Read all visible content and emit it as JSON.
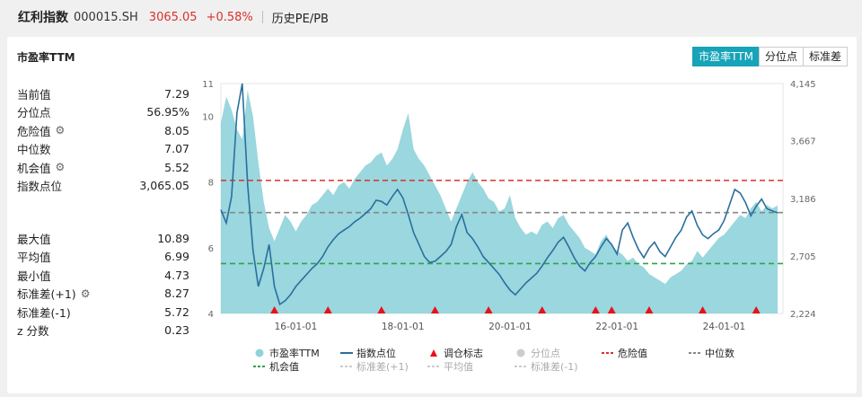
{
  "header": {
    "name": "红利指数",
    "code": "000015.SH",
    "price": "3065.05",
    "change_pct": "+0.58%",
    "tab": "历史PE/PB"
  },
  "card": {
    "title": "市盈率TTM",
    "toggles": [
      "市盈率TTM",
      "分位点",
      "标准差"
    ],
    "active_toggle": "市盈率TTM"
  },
  "stats_top": [
    {
      "label": "当前值",
      "value": "7.29",
      "gear": false
    },
    {
      "label": "分位点",
      "value": "56.95%",
      "gear": false
    },
    {
      "label": "危险值",
      "value": "8.05",
      "gear": true
    },
    {
      "label": "中位数",
      "value": "7.07",
      "gear": false
    },
    {
      "label": "机会值",
      "value": "5.52",
      "gear": true
    },
    {
      "label": "指数点位",
      "value": "3,065.05",
      "gear": false
    }
  ],
  "stats_bottom": [
    {
      "label": "最大值",
      "value": "10.89",
      "gear": false
    },
    {
      "label": "平均值",
      "value": "6.99",
      "gear": false
    },
    {
      "label": "最小值",
      "value": "4.73",
      "gear": false
    },
    {
      "label": "标准差(+1)",
      "value": "8.27",
      "gear": true
    },
    {
      "label": "标准差(-1)",
      "value": "5.72",
      "gear": false
    },
    {
      "label": "z 分数",
      "value": "0.23",
      "gear": false
    }
  ],
  "legend": {
    "row1": [
      "市盈率TTM",
      "指数点位",
      "调仓标志",
      "分位点",
      "危险值",
      "中位数"
    ],
    "row2": [
      "机会值",
      "标准差(+1)",
      "平均值",
      "标准差(-1)"
    ]
  },
  "colors": {
    "pe_fill": "#8fd3da",
    "index_line": "#2a6f9e",
    "danger": "#d9312a",
    "median": "#888888",
    "opportunity": "#2ea44f",
    "marker": "#e8101a",
    "accent": "#17a3b8"
  },
  "chart_data": {
    "type": "area",
    "x_ticks": [
      "16-01-01",
      "18-01-01",
      "20-01-01",
      "22-01-01",
      "24-01-01"
    ],
    "y_left_ticks": [
      "4",
      "6",
      "8",
      "10",
      "11"
    ],
    "y_right_ticks": [
      "2,224",
      "2,705",
      "3,186",
      "3,667",
      "4,145"
    ],
    "y_left_range": [
      4,
      11
    ],
    "y_right_range": [
      2224,
      4145
    ],
    "x_range": [
      2014.6,
      2025.1
    ],
    "reference_lines": {
      "danger": 8.05,
      "median": 7.07,
      "opportunity": 5.52
    },
    "pe_series": [
      [
        2014.6,
        9.8
      ],
      [
        2014.7,
        10.6
      ],
      [
        2014.8,
        10.2
      ],
      [
        2014.9,
        9.6
      ],
      [
        2015.0,
        9.3
      ],
      [
        2015.1,
        10.8
      ],
      [
        2015.2,
        10.0
      ],
      [
        2015.3,
        8.6
      ],
      [
        2015.4,
        7.4
      ],
      [
        2015.5,
        6.6
      ],
      [
        2015.6,
        6.2
      ],
      [
        2015.7,
        6.6
      ],
      [
        2015.8,
        7.0
      ],
      [
        2015.9,
        6.8
      ],
      [
        2016.0,
        6.5
      ],
      [
        2016.1,
        6.8
      ],
      [
        2016.2,
        7.0
      ],
      [
        2016.3,
        7.3
      ],
      [
        2016.4,
        7.4
      ],
      [
        2016.5,
        7.6
      ],
      [
        2016.6,
        7.8
      ],
      [
        2016.7,
        7.6
      ],
      [
        2016.8,
        7.9
      ],
      [
        2016.9,
        8.0
      ],
      [
        2017.0,
        7.8
      ],
      [
        2017.1,
        8.1
      ],
      [
        2017.2,
        8.3
      ],
      [
        2017.3,
        8.5
      ],
      [
        2017.4,
        8.6
      ],
      [
        2017.5,
        8.8
      ],
      [
        2017.6,
        8.9
      ],
      [
        2017.7,
        8.5
      ],
      [
        2017.8,
        8.7
      ],
      [
        2017.9,
        9.0
      ],
      [
        2018.0,
        9.6
      ],
      [
        2018.1,
        10.1
      ],
      [
        2018.2,
        9.0
      ],
      [
        2018.3,
        8.7
      ],
      [
        2018.4,
        8.5
      ],
      [
        2018.5,
        8.2
      ],
      [
        2018.6,
        7.9
      ],
      [
        2018.7,
        7.6
      ],
      [
        2018.8,
        7.2
      ],
      [
        2018.9,
        6.8
      ],
      [
        2019.0,
        7.2
      ],
      [
        2019.1,
        7.6
      ],
      [
        2019.2,
        8.0
      ],
      [
        2019.3,
        8.3
      ],
      [
        2019.4,
        8.0
      ],
      [
        2019.5,
        7.8
      ],
      [
        2019.6,
        7.5
      ],
      [
        2019.7,
        7.4
      ],
      [
        2019.8,
        7.1
      ],
      [
        2019.9,
        7.2
      ],
      [
        2020.0,
        7.6
      ],
      [
        2020.1,
        6.9
      ],
      [
        2020.2,
        6.6
      ],
      [
        2020.3,
        6.4
      ],
      [
        2020.4,
        6.5
      ],
      [
        2020.5,
        6.4
      ],
      [
        2020.6,
        6.7
      ],
      [
        2020.7,
        6.8
      ],
      [
        2020.8,
        6.6
      ],
      [
        2020.9,
        6.9
      ],
      [
        2021.0,
        7.0
      ],
      [
        2021.1,
        6.7
      ],
      [
        2021.2,
        6.5
      ],
      [
        2021.3,
        6.3
      ],
      [
        2021.4,
        6.0
      ],
      [
        2021.5,
        5.9
      ],
      [
        2021.6,
        5.8
      ],
      [
        2021.7,
        6.2
      ],
      [
        2021.8,
        6.4
      ],
      [
        2021.9,
        6.1
      ],
      [
        2022.0,
        5.9
      ],
      [
        2022.1,
        5.8
      ],
      [
        2022.2,
        5.6
      ],
      [
        2022.3,
        5.7
      ],
      [
        2022.4,
        5.5
      ],
      [
        2022.5,
        5.4
      ],
      [
        2022.6,
        5.2
      ],
      [
        2022.7,
        5.1
      ],
      [
        2022.8,
        5.0
      ],
      [
        2022.9,
        4.9
      ],
      [
        2023.0,
        5.1
      ],
      [
        2023.1,
        5.2
      ],
      [
        2023.2,
        5.3
      ],
      [
        2023.3,
        5.5
      ],
      [
        2023.4,
        5.6
      ],
      [
        2023.5,
        5.9
      ],
      [
        2023.6,
        5.7
      ],
      [
        2023.7,
        5.9
      ],
      [
        2023.8,
        6.1
      ],
      [
        2023.9,
        6.3
      ],
      [
        2024.0,
        6.4
      ],
      [
        2024.1,
        6.6
      ],
      [
        2024.2,
        6.8
      ],
      [
        2024.3,
        7.0
      ],
      [
        2024.4,
        6.9
      ],
      [
        2024.5,
        7.2
      ],
      [
        2024.6,
        7.4
      ],
      [
        2024.7,
        7.1
      ],
      [
        2024.8,
        7.3
      ],
      [
        2024.9,
        7.2
      ],
      [
        2025.0,
        7.29
      ]
    ],
    "index_series": [
      [
        2014.6,
        3090
      ],
      [
        2014.7,
        2980
      ],
      [
        2014.8,
        3200
      ],
      [
        2014.9,
        3900
      ],
      [
        2015.0,
        4145
      ],
      [
        2015.1,
        3300
      ],
      [
        2015.2,
        2750
      ],
      [
        2015.3,
        2450
      ],
      [
        2015.4,
        2600
      ],
      [
        2015.5,
        2800
      ],
      [
        2015.6,
        2450
      ],
      [
        2015.7,
        2300
      ],
      [
        2015.8,
        2330
      ],
      [
        2015.9,
        2380
      ],
      [
        2016.0,
        2450
      ],
      [
        2016.1,
        2500
      ],
      [
        2016.2,
        2550
      ],
      [
        2016.3,
        2600
      ],
      [
        2016.4,
        2640
      ],
      [
        2016.5,
        2700
      ],
      [
        2016.6,
        2780
      ],
      [
        2016.7,
        2840
      ],
      [
        2016.8,
        2890
      ],
      [
        2016.9,
        2920
      ],
      [
        2017.0,
        2950
      ],
      [
        2017.1,
        2990
      ],
      [
        2017.2,
        3020
      ],
      [
        2017.3,
        3060
      ],
      [
        2017.4,
        3100
      ],
      [
        2017.5,
        3170
      ],
      [
        2017.6,
        3160
      ],
      [
        2017.7,
        3130
      ],
      [
        2017.8,
        3200
      ],
      [
        2017.9,
        3260
      ],
      [
        2018.0,
        3190
      ],
      [
        2018.1,
        3050
      ],
      [
        2018.2,
        2900
      ],
      [
        2018.3,
        2800
      ],
      [
        2018.4,
        2700
      ],
      [
        2018.5,
        2650
      ],
      [
        2018.6,
        2660
      ],
      [
        2018.7,
        2700
      ],
      [
        2018.8,
        2740
      ],
      [
        2018.9,
        2800
      ],
      [
        2019.0,
        2950
      ],
      [
        2019.1,
        3050
      ],
      [
        2019.2,
        2900
      ],
      [
        2019.3,
        2850
      ],
      [
        2019.4,
        2780
      ],
      [
        2019.5,
        2700
      ],
      [
        2019.6,
        2650
      ],
      [
        2019.7,
        2600
      ],
      [
        2019.8,
        2550
      ],
      [
        2019.9,
        2480
      ],
      [
        2020.0,
        2420
      ],
      [
        2020.1,
        2380
      ],
      [
        2020.2,
        2430
      ],
      [
        2020.3,
        2480
      ],
      [
        2020.4,
        2520
      ],
      [
        2020.5,
        2560
      ],
      [
        2020.6,
        2620
      ],
      [
        2020.7,
        2690
      ],
      [
        2020.8,
        2750
      ],
      [
        2020.9,
        2820
      ],
      [
        2021.0,
        2860
      ],
      [
        2021.1,
        2780
      ],
      [
        2021.2,
        2690
      ],
      [
        2021.3,
        2620
      ],
      [
        2021.4,
        2580
      ],
      [
        2021.5,
        2650
      ],
      [
        2021.6,
        2700
      ],
      [
        2021.7,
        2780
      ],
      [
        2021.8,
        2850
      ],
      [
        2021.9,
        2800
      ],
      [
        2022.0,
        2720
      ],
      [
        2022.1,
        2920
      ],
      [
        2022.2,
        2980
      ],
      [
        2022.3,
        2860
      ],
      [
        2022.4,
        2760
      ],
      [
        2022.5,
        2690
      ],
      [
        2022.6,
        2770
      ],
      [
        2022.7,
        2820
      ],
      [
        2022.8,
        2740
      ],
      [
        2022.9,
        2700
      ],
      [
        2023.0,
        2780
      ],
      [
        2023.1,
        2860
      ],
      [
        2023.2,
        2920
      ],
      [
        2023.3,
        3030
      ],
      [
        2023.4,
        3080
      ],
      [
        2023.5,
        2960
      ],
      [
        2023.6,
        2880
      ],
      [
        2023.7,
        2850
      ],
      [
        2023.8,
        2890
      ],
      [
        2023.9,
        2920
      ],
      [
        2024.0,
        3000
      ],
      [
        2024.1,
        3130
      ],
      [
        2024.2,
        3260
      ],
      [
        2024.3,
        3230
      ],
      [
        2024.4,
        3150
      ],
      [
        2024.5,
        3040
      ],
      [
        2024.6,
        3120
      ],
      [
        2024.7,
        3180
      ],
      [
        2024.8,
        3100
      ],
      [
        2024.9,
        3080
      ],
      [
        2025.0,
        3065
      ]
    ],
    "rebalance_markers": [
      2015.6,
      2016.6,
      2017.6,
      2018.6,
      2019.6,
      2020.6,
      2021.6,
      2021.9,
      2022.6,
      2023.6,
      2024.6
    ]
  }
}
